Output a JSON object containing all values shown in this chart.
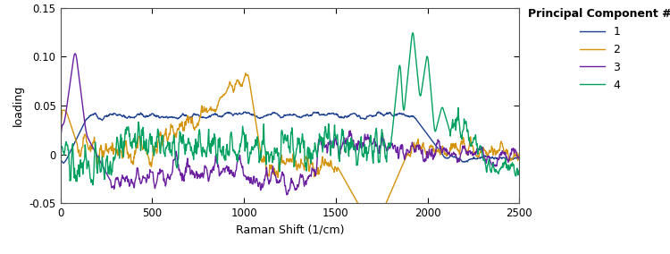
{
  "xlabel": "Raman Shift (1/cm)",
  "ylabel": "loading",
  "xlim": [
    0,
    2500
  ],
  "ylim": [
    -0.05,
    0.15
  ],
  "yticks": [
    -0.05,
    0.0,
    0.05,
    0.1,
    0.15
  ],
  "xticks": [
    0,
    500,
    1000,
    1500,
    2000,
    2500
  ],
  "legend_title": "Principal Component #",
  "legend_labels": [
    "1",
    "2",
    "3",
    "4"
  ],
  "colors": {
    "1": "#1a3f8f",
    "2": "#d4930a",
    "3": "#6a1fa0",
    "4": "#00a060"
  },
  "background_color": "#ffffff",
  "seed": 12
}
